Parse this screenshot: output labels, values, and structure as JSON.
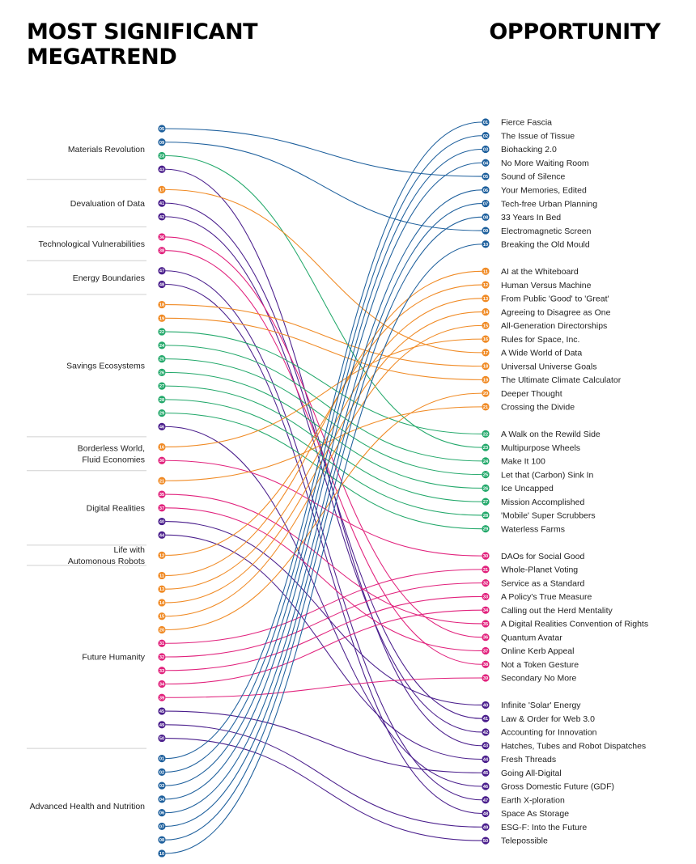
{
  "headings": {
    "left": "MOST SIGNIFICANT MEGATREND",
    "right": "OPPORTUNITY"
  },
  "colors": {
    "blue": "#1d5f9c",
    "orange": "#f08a24",
    "green": "#22a86a",
    "purple": "#4a1e8c",
    "pink": "#e1217c",
    "divider": "#d0d0d0",
    "text": "#222222"
  },
  "groups": [
    {
      "label": "Materials Revolution",
      "items": [
        {
          "n": "05",
          "c": "blue"
        },
        {
          "n": "09",
          "c": "blue"
        },
        {
          "n": "23",
          "c": "green"
        },
        {
          "n": "43",
          "c": "purple"
        }
      ]
    },
    {
      "label": "Devaluation of Data",
      "items": [
        {
          "n": "17",
          "c": "orange"
        },
        {
          "n": "41",
          "c": "purple"
        },
        {
          "n": "42",
          "c": "purple"
        }
      ]
    },
    {
      "label": "Technological Vulnerabilities",
      "items": [
        {
          "n": "36",
          "c": "pink"
        },
        {
          "n": "38",
          "c": "pink"
        }
      ]
    },
    {
      "label": "Energy Boundaries",
      "items": [
        {
          "n": "47",
          "c": "purple"
        },
        {
          "n": "48",
          "c": "purple"
        }
      ]
    },
    {
      "label": "Savings Ecosystems",
      "items": [
        {
          "n": "18",
          "c": "orange"
        },
        {
          "n": "19",
          "c": "orange"
        },
        {
          "n": "22",
          "c": "green"
        },
        {
          "n": "24",
          "c": "green"
        },
        {
          "n": "25",
          "c": "green"
        },
        {
          "n": "26",
          "c": "green"
        },
        {
          "n": "27",
          "c": "green"
        },
        {
          "n": "28",
          "c": "green"
        },
        {
          "n": "29",
          "c": "green"
        },
        {
          "n": "46",
          "c": "purple"
        }
      ]
    },
    {
      "label": "Borderless World, Fluid Economies",
      "items": [
        {
          "n": "16",
          "c": "orange"
        },
        {
          "n": "30",
          "c": "pink"
        }
      ]
    },
    {
      "label": "Digital Realities",
      "items": [
        {
          "n": "21",
          "c": "orange"
        },
        {
          "n": "35",
          "c": "pink"
        },
        {
          "n": "37",
          "c": "pink"
        },
        {
          "n": "40",
          "c": "purple"
        },
        {
          "n": "44",
          "c": "purple"
        }
      ]
    },
    {
      "label": "Life with Automonous Robots",
      "items": [
        {
          "n": "12",
          "c": "orange"
        }
      ]
    },
    {
      "label": "Future Humanity",
      "items": [
        {
          "n": "11",
          "c": "orange"
        },
        {
          "n": "13",
          "c": "orange"
        },
        {
          "n": "14",
          "c": "orange"
        },
        {
          "n": "15",
          "c": "orange"
        },
        {
          "n": "20",
          "c": "orange"
        },
        {
          "n": "31",
          "c": "pink"
        },
        {
          "n": "32",
          "c": "pink"
        },
        {
          "n": "33",
          "c": "pink"
        },
        {
          "n": "34",
          "c": "pink"
        },
        {
          "n": "39",
          "c": "pink"
        },
        {
          "n": "45",
          "c": "purple"
        },
        {
          "n": "49",
          "c": "purple"
        },
        {
          "n": "50",
          "c": "purple"
        }
      ]
    },
    {
      "label": "Advanced Health and Nutrition",
      "items": [
        {
          "n": "01",
          "c": "blue"
        },
        {
          "n": "02",
          "c": "blue"
        },
        {
          "n": "03",
          "c": "blue"
        },
        {
          "n": "04",
          "c": "blue"
        },
        {
          "n": "06",
          "c": "blue"
        },
        {
          "n": "07",
          "c": "blue"
        },
        {
          "n": "08",
          "c": "blue"
        },
        {
          "n": "10",
          "c": "blue"
        }
      ]
    }
  ],
  "opportunities": [
    {
      "n": "01",
      "label": "Fierce Fascia",
      "c": "blue"
    },
    {
      "n": "02",
      "label": "The Issue of Tissue",
      "c": "blue"
    },
    {
      "n": "03",
      "label": "Biohacking 2.0",
      "c": "blue"
    },
    {
      "n": "04",
      "label": "No More Waiting Room",
      "c": "blue"
    },
    {
      "n": "05",
      "label": "Sound of Silence",
      "c": "blue"
    },
    {
      "n": "06",
      "label": "Your Memories, Edited",
      "c": "blue"
    },
    {
      "n": "07",
      "label": "Tech-free Urban Planning",
      "c": "blue"
    },
    {
      "n": "08",
      "label": "33 Years In Bed",
      "c": "blue"
    },
    {
      "n": "09",
      "label": "Electromagnetic Screen",
      "c": "blue"
    },
    {
      "n": "10",
      "label": "Breaking the Old Mould",
      "c": "blue"
    },
    {
      "n": "11",
      "label": "AI at the Whiteboard",
      "c": "orange"
    },
    {
      "n": "12",
      "label": "Human Versus Machine",
      "c": "orange"
    },
    {
      "n": "13",
      "label": "From Public 'Good' to 'Great'",
      "c": "orange"
    },
    {
      "n": "14",
      "label": "Agreeing to Disagree as One",
      "c": "orange"
    },
    {
      "n": "15",
      "label": "All-Generation Directorships",
      "c": "orange"
    },
    {
      "n": "16",
      "label": "Rules for Space, Inc.",
      "c": "orange"
    },
    {
      "n": "17",
      "label": "A Wide World of Data",
      "c": "orange"
    },
    {
      "n": "18",
      "label": "Universal Universe Goals",
      "c": "orange"
    },
    {
      "n": "19",
      "label": "The Ultimate Climate Calculator",
      "c": "orange"
    },
    {
      "n": "20",
      "label": "Deeper Thought",
      "c": "orange"
    },
    {
      "n": "21",
      "label": "Crossing the Divide",
      "c": "orange"
    },
    {
      "n": "22",
      "label": "A Walk on the Rewild Side",
      "c": "green"
    },
    {
      "n": "23",
      "label": "Multipurpose Wheels",
      "c": "green"
    },
    {
      "n": "24",
      "label": "Make It 100",
      "c": "green"
    },
    {
      "n": "25",
      "label": "Let that (Carbon) Sink In",
      "c": "green"
    },
    {
      "n": "26",
      "label": "Ice Uncapped",
      "c": "green"
    },
    {
      "n": "27",
      "label": "Mission Accomplished",
      "c": "green"
    },
    {
      "n": "28",
      "label": "'Mobile' Super Scrubbers",
      "c": "green"
    },
    {
      "n": "29",
      "label": "Waterless Farms",
      "c": "green"
    },
    {
      "n": "30",
      "label": "DAOs for Social Good",
      "c": "pink"
    },
    {
      "n": "31",
      "label": "Whole-Planet Voting",
      "c": "pink"
    },
    {
      "n": "32",
      "label": "Service as a Standard",
      "c": "pink"
    },
    {
      "n": "33",
      "label": "A Policy's True Measure",
      "c": "pink"
    },
    {
      "n": "34",
      "label": "Calling out the Herd Mentality",
      "c": "pink"
    },
    {
      "n": "35",
      "label": "A Digital Realities Convention of Rights",
      "c": "pink"
    },
    {
      "n": "36",
      "label": "Quantum Avatar",
      "c": "pink"
    },
    {
      "n": "37",
      "label": "Online Kerb Appeal",
      "c": "pink"
    },
    {
      "n": "38",
      "label": "Not a Token Gesture",
      "c": "pink"
    },
    {
      "n": "39",
      "label": "Secondary No More",
      "c": "pink"
    },
    {
      "n": "40",
      "label": "Infinite 'Solar' Energy",
      "c": "purple"
    },
    {
      "n": "41",
      "label": "Law & Order for Web 3.0",
      "c": "purple"
    },
    {
      "n": "42",
      "label": "Accounting for Innovation",
      "c": "purple"
    },
    {
      "n": "43",
      "label": "Hatches, Tubes and Robot Dispatches",
      "c": "purple"
    },
    {
      "n": "44",
      "label": "Fresh Threads",
      "c": "purple"
    },
    {
      "n": "45",
      "label": "Going All-Digital",
      "c": "purple"
    },
    {
      "n": "46",
      "label": "Gross Domestic Future (GDF)",
      "c": "purple"
    },
    {
      "n": "47",
      "label": "Earth X-ploration",
      "c": "purple"
    },
    {
      "n": "48",
      "label": "Space As Storage",
      "c": "purple"
    },
    {
      "n": "49",
      "label": "ESG-F: Into the Future",
      "c": "purple"
    },
    {
      "n": "50",
      "label": "Telepossible",
      "c": "purple"
    }
  ]
}
